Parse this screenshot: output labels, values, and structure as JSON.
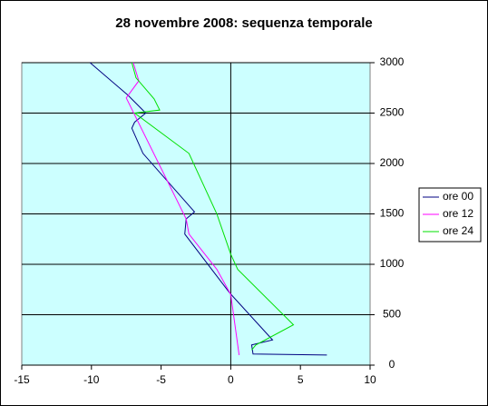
{
  "chart_data": {
    "type": "line",
    "title": "28 novembre 2008: sequenza temporale",
    "xlim": [
      -15,
      10
    ],
    "xticks": [
      -15,
      -10,
      -5,
      0,
      5,
      10
    ],
    "ylim": [
      0,
      3000
    ],
    "yticks": [
      0,
      500,
      1000,
      1500,
      2000,
      2500,
      3000
    ],
    "grid": true,
    "legend": "right",
    "series": [
      {
        "name": "ore 00",
        "color": "#000080",
        "x": [
          -10.1,
          -7.4,
          -6.1,
          -6.9,
          -7.1,
          -6.3,
          -2.6,
          -3.2,
          -3.3,
          -0.1,
          3.0,
          1.5,
          1.6,
          6.9
        ],
        "values": [
          3000,
          2680,
          2500,
          2410,
          2350,
          2100,
          1520,
          1450,
          1300,
          720,
          250,
          200,
          110,
          100
        ]
      },
      {
        "name": "ore 12",
        "color": "#ff00ff",
        "x": [
          -7.0,
          -6.6,
          -7.5,
          -3.2,
          -3.0,
          -1.0,
          0.0,
          0.6
        ],
        "values": [
          3000,
          2820,
          2650,
          1450,
          1300,
          950,
          700,
          100
        ]
      },
      {
        "name": "ore 24",
        "color": "#00e000",
        "x": [
          -7.1,
          -6.8,
          -5.5,
          -5.1,
          -6.9,
          -3.0,
          -1.0,
          0.0,
          0.5,
          4.5,
          1.8,
          1.5
        ],
        "values": [
          3000,
          2850,
          2640,
          2530,
          2500,
          2100,
          1500,
          1100,
          950,
          400,
          200,
          150
        ]
      }
    ]
  }
}
